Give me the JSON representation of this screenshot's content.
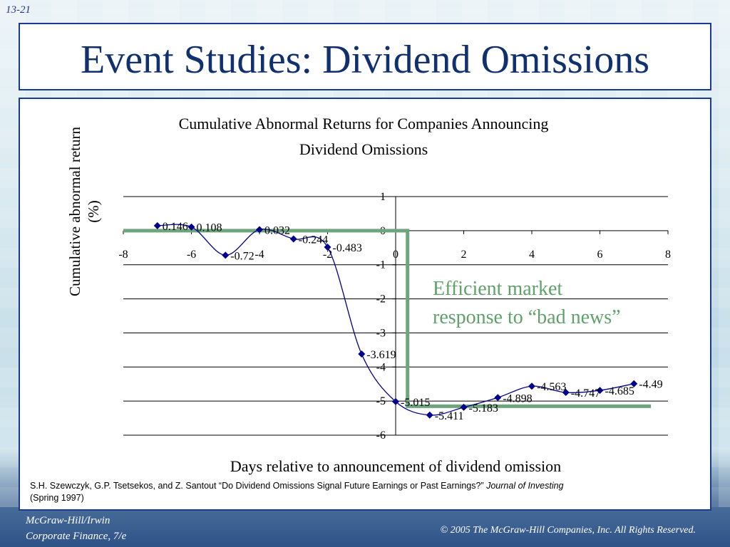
{
  "slide_number": "13-21",
  "title": "Event Studies: Dividend Omissions",
  "annotation": {
    "line1": "Efficient market",
    "line2": "response to “bad news”"
  },
  "citation": {
    "text": "S.H. Szewczyk, G.P. Tsetsekos, and Z. Santout “Do Dividend Omissions Signal Future Earnings or Past Earnings?” ",
    "journal": "Journal of Investing",
    "date": "(Spring 1997)"
  },
  "footer": {
    "publisher": "McGraw-Hill/Irwin",
    "book": "Corporate Finance, 7/e",
    "copyright": "© 2005  The McGraw-Hill Companies, Inc.  All Rights Reserved."
  },
  "colors": {
    "series": "#00008b",
    "step_line": "#6fa57c",
    "annotation": "#5fa06b",
    "frame": "#1a3a8c"
  },
  "chart_data": {
    "type": "line",
    "title_line1": "Cumulative Abnormal Returns for Companies Announcing",
    "title_line2": "Dividend Omissions",
    "xlabel": "Days relative to announcement of dividend omission",
    "ylabel_line1": "Cumulative abnormal return",
    "ylabel_line2": "(%)",
    "xlim": [
      -8,
      8
    ],
    "ylim": [
      -6,
      1
    ],
    "x_ticks": [
      -8,
      -6,
      -4,
      -2,
      0,
      2,
      4,
      6,
      8
    ],
    "y_ticks": [
      1,
      0,
      -1,
      -2,
      -3,
      -4,
      -5,
      -6
    ],
    "grid": true,
    "x": [
      -7,
      -6,
      -5,
      -4,
      -3,
      -2,
      -1,
      0,
      1,
      2,
      3,
      4,
      5,
      6,
      7
    ],
    "values": [
      0.146,
      0.108,
      -0.72,
      0.032,
      -0.244,
      -0.483,
      -3.619,
      -5.015,
      -5.411,
      -5.183,
      -4.898,
      -4.563,
      -4.747,
      -4.685,
      -4.49
    ],
    "data_labels": [
      "0.146",
      "0.108",
      "-0.72",
      "0.032",
      "-0.244",
      "-0.483",
      "-3.619",
      "-5.015",
      "-5.411",
      "-5.183",
      "-4.898",
      "-4.563",
      "-4.747",
      "-4.685",
      "-4.49"
    ],
    "step_overlay": {
      "x": [
        -8,
        0.35,
        0.35,
        7.5
      ],
      "y": [
        0,
        0,
        -5.15,
        -5.15
      ]
    }
  }
}
